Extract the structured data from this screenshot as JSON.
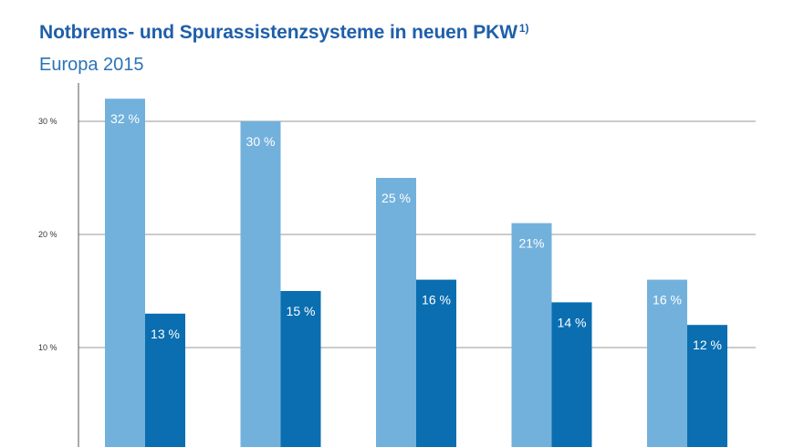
{
  "header": {
    "title": "Notbrems- und Spurassistenzsysteme in neuen PKW",
    "footnote_marker": "1)",
    "subtitle": "Europa 2015"
  },
  "chart_data": {
    "type": "bar",
    "title": "Notbrems- und Spurassistenzsysteme in neuen PKW",
    "subtitle": "Europa 2015",
    "categories": [
      "",
      "",
      "",
      "",
      ""
    ],
    "series": [
      {
        "values": [
          32,
          30,
          25,
          21,
          16
        ],
        "labels": [
          "32 %",
          "30 %",
          "25 %",
          "21%",
          "16 %"
        ],
        "color": "#72b1dc"
      },
      {
        "values": [
          13,
          15,
          16,
          14,
          12
        ],
        "labels": [
          "13 %",
          "15 %",
          "16 %",
          "14 %",
          "12 %"
        ],
        "color": "#0a6eb0"
      }
    ],
    "yticks": [
      10,
      20,
      30
    ],
    "ytick_labels": [
      "10 %",
      "20 %",
      "30 %"
    ],
    "ylim": [
      1.3,
      35
    ],
    "grid": true,
    "legend": "none",
    "colors": {
      "gridline": "#9a9a9a",
      "axis": "#555555",
      "tick_label": "#333333",
      "bar_label": "#ffffff"
    }
  }
}
